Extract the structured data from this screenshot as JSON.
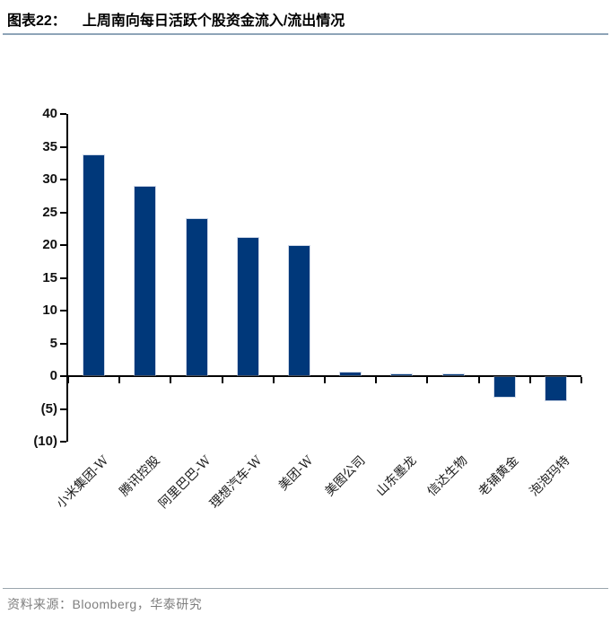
{
  "header": {
    "figure_label": "图表22：",
    "title": "上周南向每日活跃个股资金流入/流出情况"
  },
  "footer": {
    "source_text": "资料来源：Bloomberg，华泰研究"
  },
  "colors": {
    "bar": "#00387A",
    "axis": "#000000",
    "title_rule": "#8ea4b8",
    "footer_rule": "#9aa5ad",
    "footer_text": "#7f7f7f"
  },
  "chart_data": {
    "type": "bar",
    "title": "上周南向每日活跃个股资金流入/流出情况",
    "categories": [
      "小米集团-W",
      "腾讯控股",
      "阿里巴巴-W",
      "理想汽车-W",
      "美团-W",
      "美图公司",
      "山东墨龙",
      "信达生物",
      "老铺黄金",
      "泡泡玛特"
    ],
    "values": [
      33.6,
      28.7,
      23.8,
      21.0,
      19.7,
      0.4,
      0.1,
      0.1,
      -3.0,
      -3.6
    ],
    "xlabel": "",
    "ylabel": "",
    "ylim": [
      -10,
      40
    ],
    "ytick_step": 5,
    "ytick_labels": [
      "40",
      "35",
      "30",
      "25",
      "20",
      "15",
      "10",
      "5",
      "0",
      "(5)",
      "(10)"
    ],
    "negative_number_format": "parentheses",
    "grid": false,
    "legend": false,
    "bar_color": "#00387A"
  }
}
